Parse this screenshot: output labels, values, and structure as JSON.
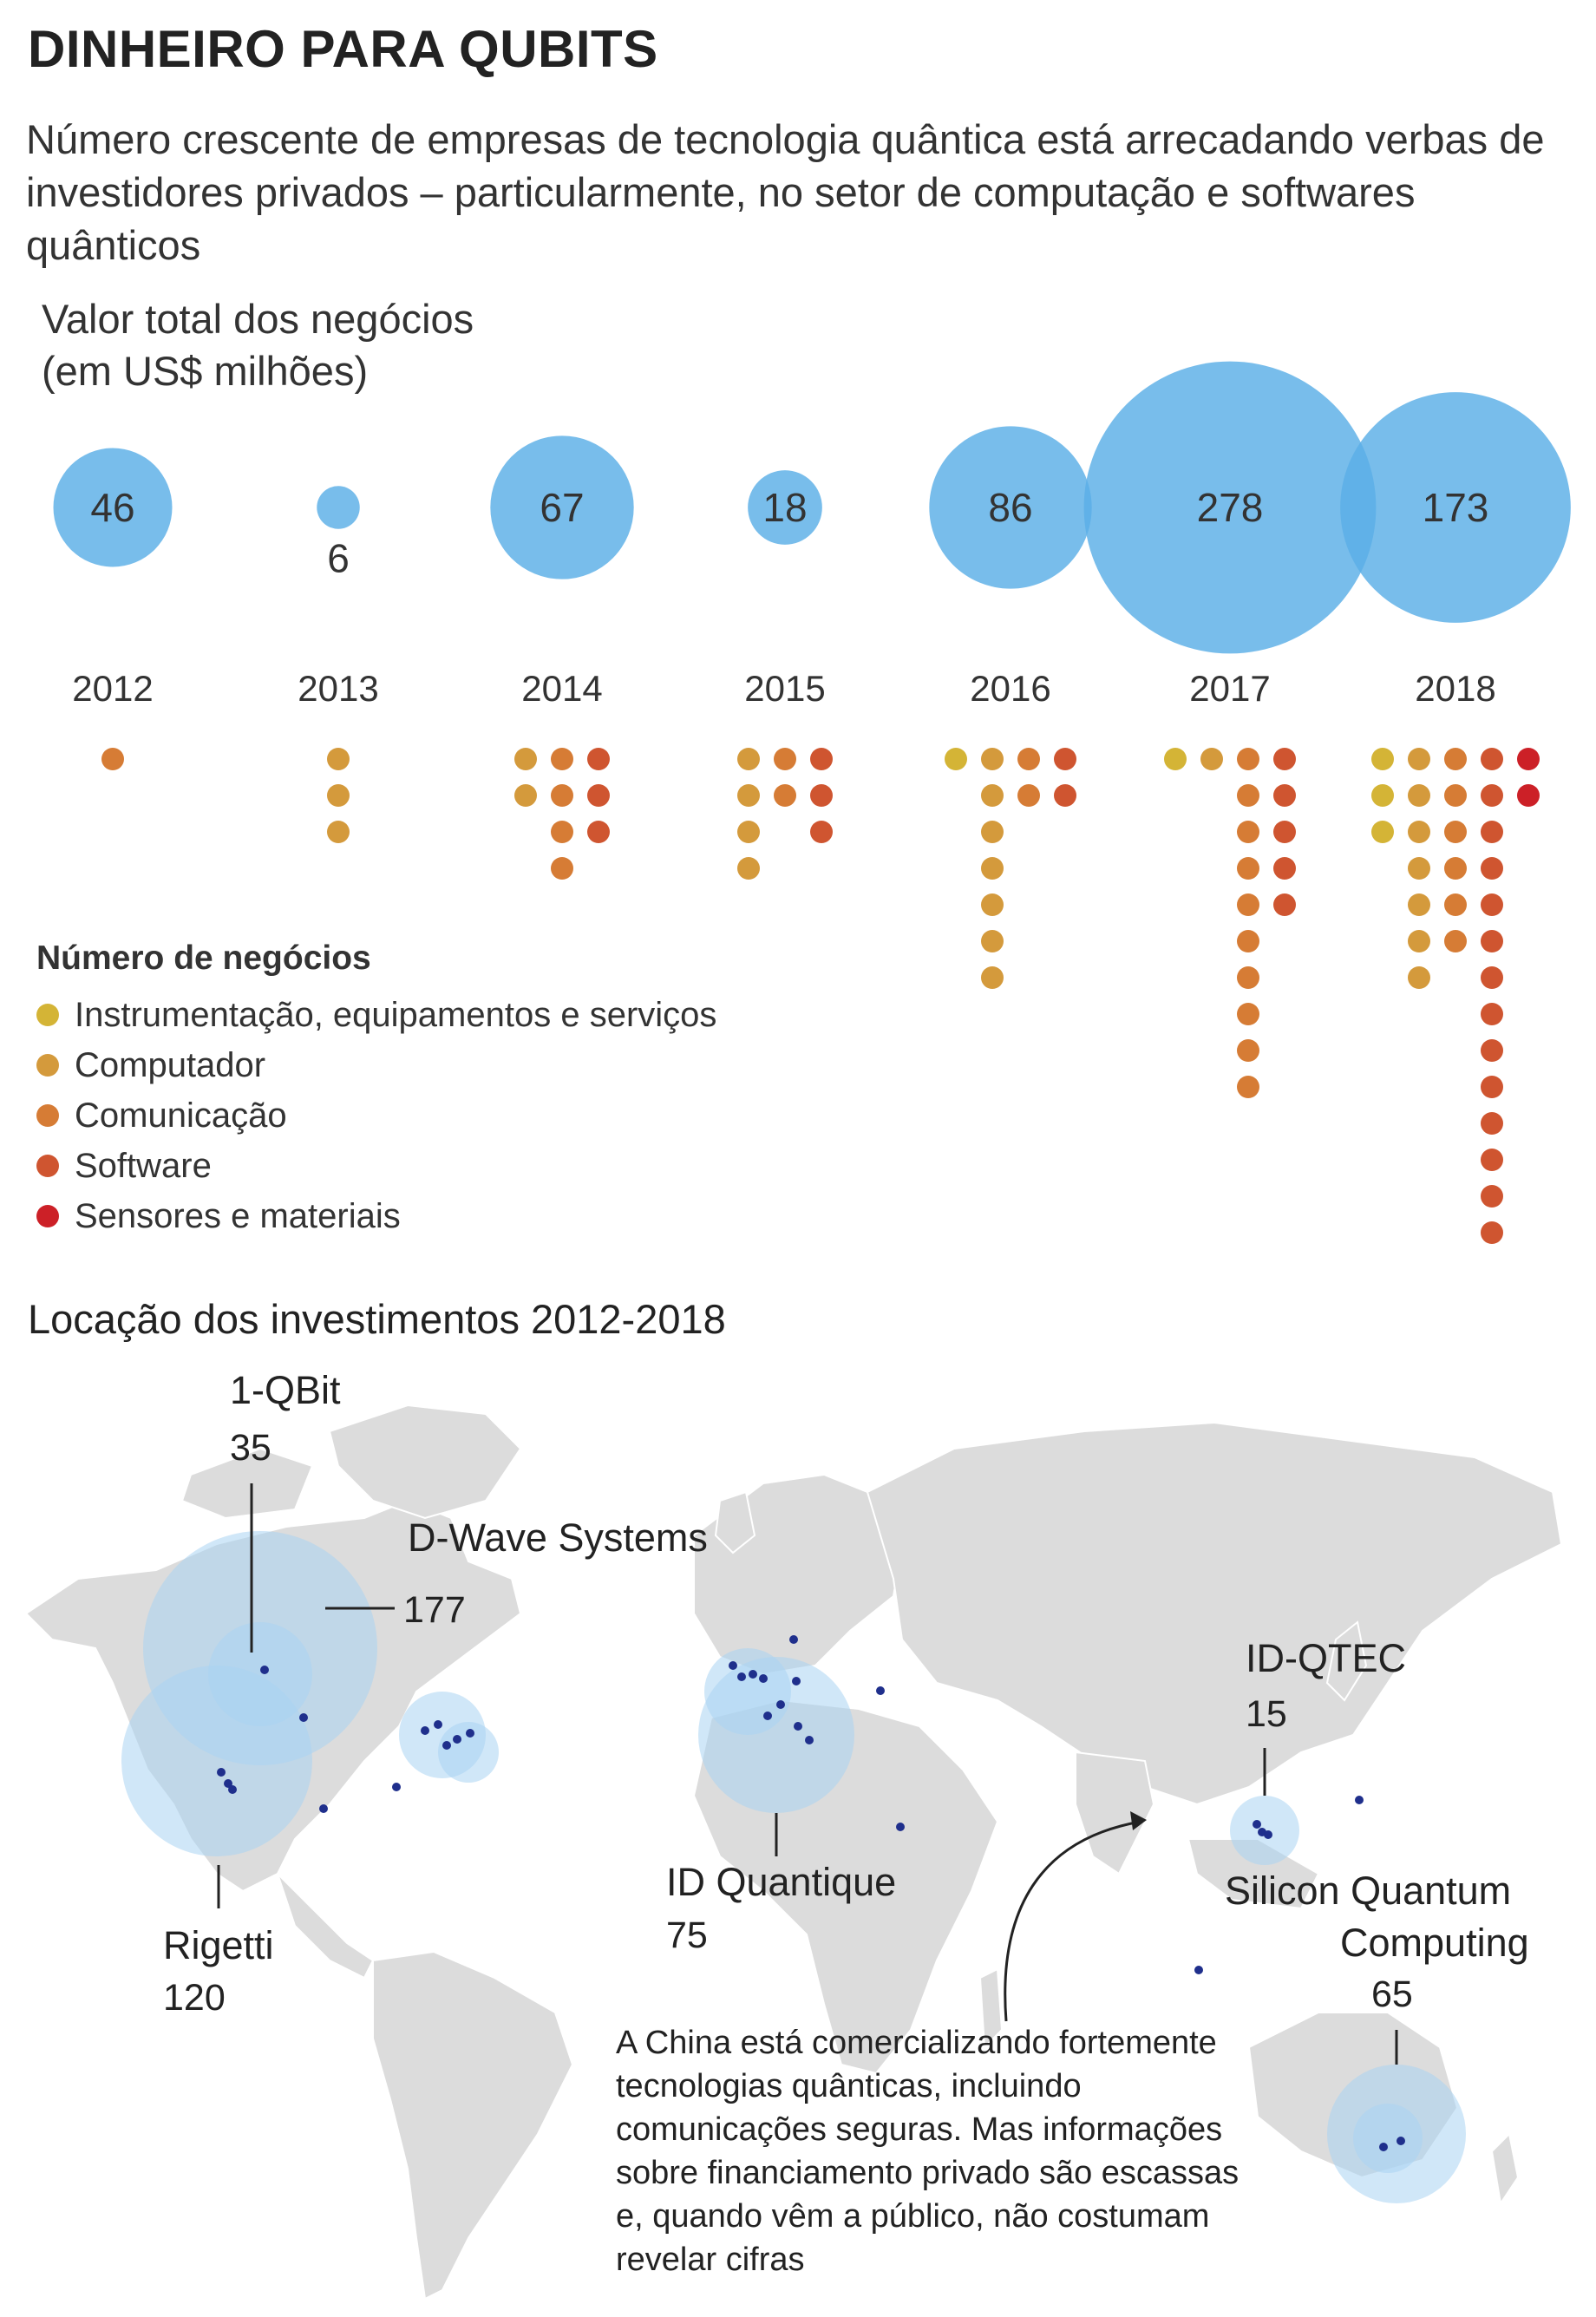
{
  "title": "DINHEIRO PARA QUBITS",
  "subtitle": "Número crescente de empresas de tecnologia quântica está arrecadando verbas de investidores privados – particularmente, no setor de computação e softwares quânticos",
  "value_label_line1": "Valor total dos negócios",
  "value_label_line2": "(em US$ milhões)",
  "legend": {
    "title": "Número de negócios",
    "items": [
      {
        "label": "Instrumentação, equipamentos e serviços",
        "color": "#d4b436"
      },
      {
        "label": "Computador",
        "color": "#d49a3c"
      },
      {
        "label": "Comunicação",
        "color": "#d67c35"
      },
      {
        "label": "Software",
        "color": "#cf5530"
      },
      {
        "label": "Sensores e materiais",
        "color": "#cc2027"
      }
    ]
  },
  "chart_data": [
    {
      "type": "bubble",
      "title": "Valor total dos negócios (em US$ milhões)",
      "categories": [
        "2012",
        "2013",
        "2014",
        "2015",
        "2016",
        "2017",
        "2018"
      ],
      "values": [
        46,
        6,
        67,
        18,
        86,
        278,
        173
      ],
      "bubble_color": "#5aaee6"
    },
    {
      "type": "dot-matrix",
      "title": "Número de negócios",
      "categories": [
        "2012",
        "2013",
        "2014",
        "2015",
        "2016",
        "2017",
        "2018"
      ],
      "series": [
        {
          "name": "Instrumentação, equipamentos e serviços",
          "values": [
            0,
            0,
            0,
            0,
            1,
            1,
            3
          ]
        },
        {
          "name": "Computador",
          "values": [
            0,
            3,
            2,
            4,
            7,
            1,
            7
          ]
        },
        {
          "name": "Comunicação",
          "values": [
            1,
            0,
            4,
            2,
            2,
            10,
            6
          ]
        },
        {
          "name": "Software",
          "values": [
            0,
            0,
            3,
            3,
            2,
            5,
            14
          ]
        },
        {
          "name": "Sensores e materiais",
          "values": [
            0,
            0,
            0,
            0,
            0,
            0,
            2
          ]
        }
      ]
    }
  ],
  "map": {
    "title": "Locação dos investimentos 2012-2018",
    "labels": [
      {
        "name": "1-QBit",
        "value": "35"
      },
      {
        "name": "D-Wave Systems",
        "value": "177"
      },
      {
        "name": "Rigetti",
        "value": "120"
      },
      {
        "name": "ID Quantique",
        "value": "75"
      },
      {
        "name": "ID-QTEC",
        "value": "15"
      },
      {
        "name_line1": "Silicon Quantum",
        "name_line2": "Computing",
        "value": "65"
      }
    ],
    "note": "A China está comercializando fortemente tecnologias quânticas, incluindo comunicações seguras. Mas informações sobre financiamento privado são escassas e, quando vêm a público, não costumam revelar cifras",
    "land_color": "#dcdcdc",
    "circle_color": "#a9d3f2",
    "point_color": "#1f2f8c"
  }
}
